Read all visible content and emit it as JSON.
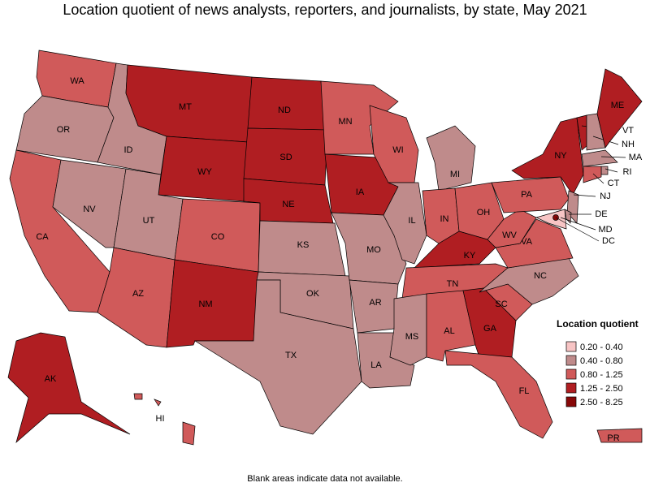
{
  "title": "Location quotient of news analysts, reporters, and journalists, by state, May 2021",
  "legend": {
    "title": "Location quotient",
    "items": [
      {
        "label": "0.20 - 0.40",
        "color": "#f7c4c4"
      },
      {
        "label": "0.40 - 0.80",
        "color": "#bf8b8b"
      },
      {
        "label": "0.80 - 1.25",
        "color": "#d05a5a"
      },
      {
        "label": "1.25 - 2.50",
        "color": "#b01e22"
      },
      {
        "label": "2.50 - 8.25",
        "color": "#870808"
      }
    ]
  },
  "states": [
    {
      "label": "WA",
      "color": "#d05a5a"
    },
    {
      "label": "OR",
      "color": "#bf8b8b"
    },
    {
      "label": "CA",
      "color": "#d05a5a"
    },
    {
      "label": "NV",
      "color": "#bf8b8b"
    },
    {
      "label": "ID",
      "color": "#bf8b8b"
    },
    {
      "label": "MT",
      "color": "#b01e22"
    },
    {
      "label": "WY",
      "color": "#b01e22"
    },
    {
      "label": "UT",
      "color": "#bf8b8b"
    },
    {
      "label": "AZ",
      "color": "#d05a5a"
    },
    {
      "label": "CO",
      "color": "#d05a5a"
    },
    {
      "label": "NM",
      "color": "#b01e22"
    },
    {
      "label": "ND",
      "color": "#b01e22"
    },
    {
      "label": "SD",
      "color": "#b01e22"
    },
    {
      "label": "NE",
      "color": "#b01e22"
    },
    {
      "label": "KS",
      "color": "#bf8b8b"
    },
    {
      "label": "OK",
      "color": "#bf8b8b"
    },
    {
      "label": "TX",
      "color": "#bf8b8b"
    },
    {
      "label": "MN",
      "color": "#d05a5a"
    },
    {
      "label": "IA",
      "color": "#b01e22"
    },
    {
      "label": "MO",
      "color": "#bf8b8b"
    },
    {
      "label": "AR",
      "color": "#bf8b8b"
    },
    {
      "label": "LA",
      "color": "#bf8b8b"
    },
    {
      "label": "WI",
      "color": "#d05a5a"
    },
    {
      "label": "IL",
      "color": "#bf8b8b"
    },
    {
      "label": "MI",
      "color": "#bf8b8b"
    },
    {
      "label": "IN",
      "color": "#d05a5a"
    },
    {
      "label": "OH",
      "color": "#d05a5a"
    },
    {
      "label": "KY",
      "color": "#b01e22"
    },
    {
      "label": "TN",
      "color": "#d05a5a"
    },
    {
      "label": "MS",
      "color": "#bf8b8b"
    },
    {
      "label": "AL",
      "color": "#d05a5a"
    },
    {
      "label": "GA",
      "color": "#b01e22"
    },
    {
      "label": "FL",
      "color": "#d05a5a"
    },
    {
      "label": "SC",
      "color": "#d05a5a"
    },
    {
      "label": "NC",
      "color": "#bf8b8b"
    },
    {
      "label": "VA",
      "color": "#d05a5a"
    },
    {
      "label": "WV",
      "color": "#d05a5a"
    },
    {
      "label": "PA",
      "color": "#d05a5a"
    },
    {
      "label": "NY",
      "color": "#b01e22"
    },
    {
      "label": "VT",
      "color": "#b01e22"
    },
    {
      "label": "NH",
      "color": "#bf8b8b"
    },
    {
      "label": "ME",
      "color": "#b01e22"
    },
    {
      "label": "MA",
      "color": "#bf8b8b"
    },
    {
      "label": "RI",
      "color": "#bf8b8b"
    },
    {
      "label": "CT",
      "color": "#d05a5a"
    },
    {
      "label": "NJ",
      "color": "#bf8b8b"
    },
    {
      "label": "DE",
      "color": "#bf8b8b"
    },
    {
      "label": "MD",
      "color": "#f7c4c4"
    },
    {
      "label": "DC",
      "color": "#870808"
    },
    {
      "label": "AK",
      "color": "#b01e22"
    },
    {
      "label": "HI",
      "color": "#d05a5a"
    },
    {
      "label": "PR",
      "color": "#d05a5a"
    }
  ],
  "footnote": "Blank areas indicate data not available."
}
